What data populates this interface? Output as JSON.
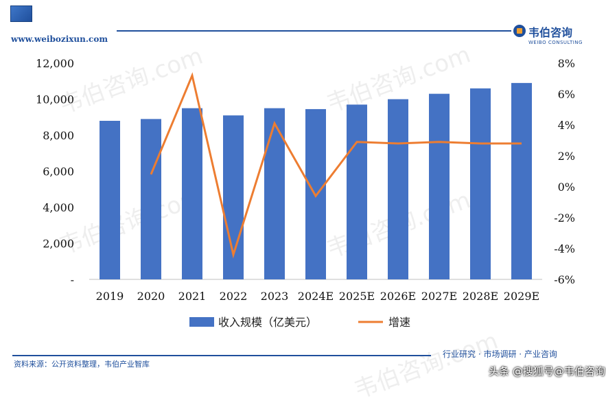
{
  "header": {
    "url": "www.weibozixun.com",
    "brand_cn": "韦伯咨询",
    "brand_en": "WEIBO CONSULTING"
  },
  "watermarks": [
    "韦伯咨询.com",
    "韦伯咨询.com",
    "韦伯咨询.com",
    "韦伯咨询.com",
    "韦伯咨询.com"
  ],
  "chart_data": {
    "type": "bar",
    "categories": [
      "2019",
      "2020",
      "2021",
      "2022",
      "2023",
      "2024E",
      "2025E",
      "2026E",
      "2027E",
      "2028E",
      "2029E"
    ],
    "series": [
      {
        "name": "收入规模（亿美元）",
        "type": "bar",
        "axis": "left",
        "values": [
          8800,
          8900,
          9500,
          9100,
          9500,
          9450,
          9700,
          10000,
          10300,
          10600,
          10900
        ]
      },
      {
        "name": "增速",
        "type": "line",
        "axis": "right",
        "values": [
          null,
          0.8,
          7.2,
          -4.4,
          4.1,
          -0.6,
          2.9,
          2.8,
          2.9,
          2.8,
          2.8
        ]
      }
    ],
    "y_left": {
      "range": [
        0,
        12000
      ],
      "ticks": [
        "-",
        "2,000",
        "4,000",
        "6,000",
        "8,000",
        "10,000",
        "12,000"
      ]
    },
    "y_right": {
      "range": [
        -6,
        8
      ],
      "ticks": [
        "-6%",
        "-4%",
        "-2%",
        "0%",
        "2%",
        "4%",
        "6%",
        "8%"
      ]
    },
    "colors": {
      "bar": "#4472c4",
      "line": "#ed7d31"
    },
    "legend": {
      "position": "bottom"
    }
  },
  "footer": {
    "source": "资料来源：公开资料整理，韦伯产业智库",
    "right": "行业研究 · 市场调研 · 产业咨询",
    "social": "头条 @搜狐号@韦伯咨询"
  }
}
